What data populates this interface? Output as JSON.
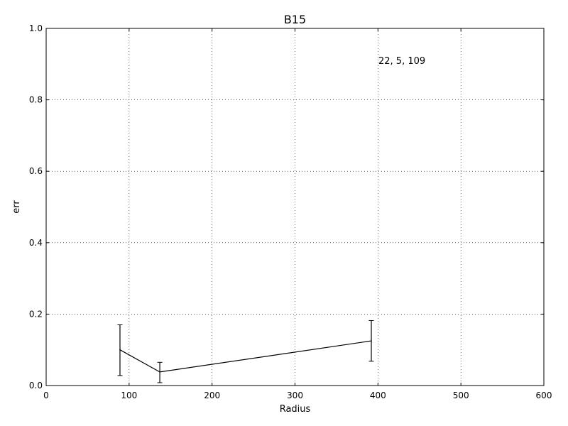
{
  "chart_data": {
    "type": "line",
    "title": "B15",
    "xlabel": "Radius",
    "ylabel": "err",
    "xlim": [
      0,
      600
    ],
    "ylim": [
      0.0,
      1.0
    ],
    "xticks": [
      "0",
      "100",
      "200",
      "300",
      "400",
      "500",
      "600"
    ],
    "yticks": [
      "0.0",
      "0.2",
      "0.4",
      "0.6",
      "0.8",
      "1.0"
    ],
    "grid": true,
    "annotation": "22, 5, 109",
    "series": [
      {
        "points": [
          {
            "x": 89,
            "y": 0.1,
            "err_low": 0.028,
            "err_high": 0.17
          },
          {
            "x": 137,
            "y": 0.038,
            "err_low": 0.008,
            "err_high": 0.065
          },
          {
            "x": 392,
            "y": 0.125,
            "err_low": 0.068,
            "err_high": 0.182
          }
        ],
        "color": "#000000"
      }
    ]
  }
}
